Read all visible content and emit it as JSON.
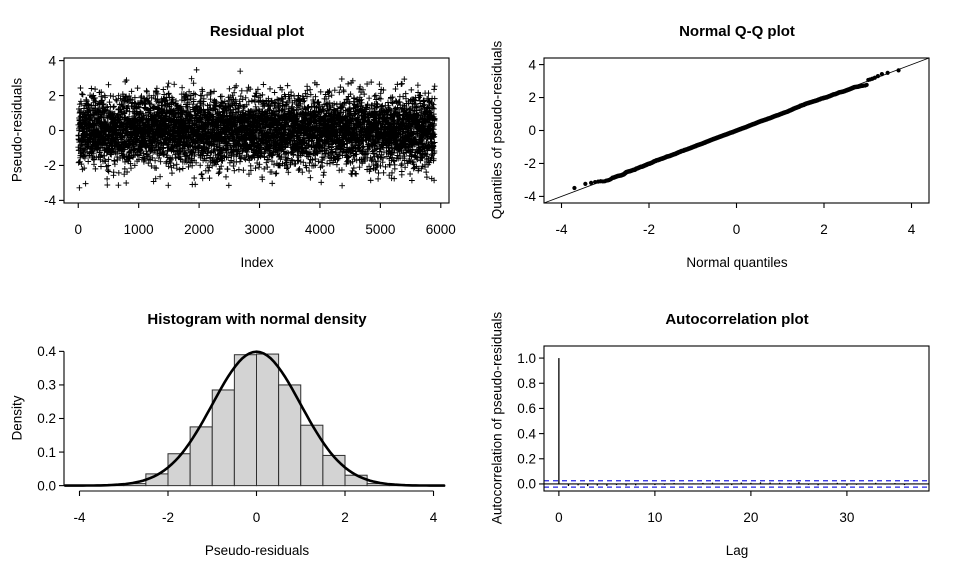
{
  "page": {
    "background": "#ffffff"
  },
  "colors": {
    "foreground": "#000000",
    "hist_fill": "#d3d3d3",
    "hist_border": "#2e2e2e",
    "acf_ci_color": "#2323e0"
  },
  "chart_data": [
    {
      "id": "residual",
      "type": "scatter",
      "title": "Residual plot",
      "xlabel": "Index",
      "ylabel": "Pseudo-residuals",
      "marker": "plus",
      "n_points": 5900,
      "distribution": {
        "kind": "standard-normal",
        "seed": 42
      },
      "xlim": [
        -236,
        6136
      ],
      "ylim": [
        -4.15,
        4.15
      ],
      "frame": "box",
      "x_ticks": {
        "values": [
          0,
          1000,
          2000,
          3000,
          4000,
          5000,
          6000
        ],
        "labels": [
          "0",
          "1000",
          "2000",
          "3000",
          "4000",
          "5000",
          "6000"
        ]
      },
      "y_ticks": {
        "values": [
          -4,
          -2,
          0,
          2,
          4
        ],
        "labels": [
          "-4",
          "-2",
          "0",
          "2",
          "4"
        ]
      },
      "grid": false
    },
    {
      "id": "qq",
      "type": "qq",
      "title": "Normal Q-Q plot",
      "xlabel": "Normal quantiles",
      "ylabel": "Quantiles of pseudo-residuals",
      "n_points": 5900,
      "seed": 42,
      "reference_line": {
        "slope": 1,
        "intercept": 0
      },
      "lower_tail_sample": [
        -3.49,
        -3.24,
        -3.18,
        -3.13,
        -3.1,
        -3.08
      ],
      "upper_tail_sample": [
        3.07,
        3.1,
        3.14,
        3.2,
        3.3,
        3.42,
        3.5,
        3.65
      ],
      "xlim": [
        -4.4,
        4.4
      ],
      "ylim": [
        -4.4,
        4.4
      ],
      "frame": "box",
      "x_ticks": {
        "values": [
          -4,
          -2,
          0,
          2,
          4
        ],
        "labels": [
          "-4",
          "-2",
          "0",
          "2",
          "4"
        ]
      },
      "y_ticks": {
        "values": [
          -4,
          -2,
          0,
          2,
          4
        ],
        "labels": [
          "-4",
          "-2",
          "0",
          "2",
          "4"
        ]
      },
      "grid": false
    },
    {
      "id": "hist",
      "type": "histogram",
      "title": "Histogram with normal density",
      "xlabel": "Pseudo-residuals",
      "ylabel": "Density",
      "bin_start": -3.5,
      "bin_width": 0.5,
      "densities": [
        0.001,
        0.006,
        0.035,
        0.095,
        0.175,
        0.285,
        0.39,
        0.392,
        0.3,
        0.18,
        0.09,
        0.031,
        0.006,
        0.001
      ],
      "curve": {
        "kind": "normal-density",
        "mean": 0,
        "sd": 1,
        "peak": 0.3989
      },
      "xlim": [
        -4.35,
        4.35
      ],
      "ylim": [
        -0.016,
        0.416
      ],
      "frame": "axes",
      "x_ticks": {
        "values": [
          -4,
          -2,
          0,
          2,
          4
        ],
        "labels": [
          "-4",
          "-2",
          "0",
          "2",
          "4"
        ]
      },
      "y_ticks": {
        "values": [
          0,
          0.1,
          0.2,
          0.3,
          0.4
        ],
        "labels": [
          "0.0",
          "0.1",
          "0.2",
          "0.3",
          "0.4"
        ]
      },
      "grid": false
    },
    {
      "id": "acf",
      "type": "acf",
      "title": "Autocorrelation plot",
      "xlabel": "Lag",
      "ylabel": "Autocorrelation of pseudo-residuals",
      "conf_bound": 0.0255,
      "acf_values": [
        1.0,
        -0.016,
        -0.011,
        -0.017,
        -0.013,
        -0.015,
        -0.009,
        -0.013,
        -0.011,
        -0.005,
        -0.009,
        -0.007,
        0.007,
        0.005,
        0.004,
        0.008,
        0.01,
        0.005,
        -0.009,
        0.011,
        0.009,
        0.013,
        0.011,
        0.009,
        0.007,
        0.015,
        -0.007,
        -0.011,
        -0.005,
        0.009,
        -0.013,
        -0.007,
        0.005,
        0.009,
        -0.005,
        0.007,
        -0.009,
        0.004
      ],
      "xlim": [
        -1.55,
        38.55
      ],
      "ylim": [
        -0.056,
        1.096
      ],
      "frame": "box",
      "x_ticks": {
        "values": [
          0,
          10,
          20,
          30
        ],
        "labels": [
          "0",
          "10",
          "20",
          "30"
        ]
      },
      "y_ticks": {
        "values": [
          0,
          0.2,
          0.4,
          0.6,
          0.8,
          1.0
        ],
        "labels": [
          "0.0",
          "0.2",
          "0.4",
          "0.6",
          "0.8",
          "1.0"
        ]
      },
      "grid": false
    }
  ]
}
